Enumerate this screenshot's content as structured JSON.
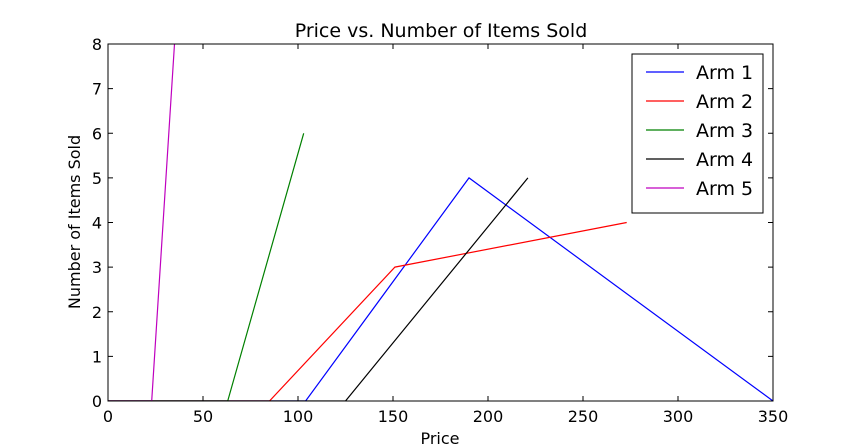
{
  "chart_data": {
    "type": "line",
    "title": "Price vs. Number of Items Sold",
    "xlabel": "Price",
    "ylabel": "Number of Items Sold",
    "xlim": [
      0,
      350
    ],
    "ylim": [
      0,
      8
    ],
    "xticks": [
      0,
      50,
      100,
      150,
      200,
      250,
      300,
      350
    ],
    "yticks": [
      0,
      1,
      2,
      3,
      4,
      5,
      6,
      7,
      8
    ],
    "grid": false,
    "legend_position": "top-right",
    "series": [
      {
        "name": "Arm 1",
        "color": "#0000ff",
        "points": [
          [
            0,
            0
          ],
          [
            104,
            0
          ],
          [
            190,
            5
          ],
          [
            350,
            0
          ]
        ]
      },
      {
        "name": "Arm 2",
        "color": "#ff0000",
        "points": [
          [
            0,
            0
          ],
          [
            85,
            0
          ],
          [
            151,
            3
          ],
          [
            273,
            4
          ]
        ]
      },
      {
        "name": "Arm 3",
        "color": "#008000",
        "points": [
          [
            0,
            0
          ],
          [
            63,
            0
          ],
          [
            103,
            6
          ]
        ]
      },
      {
        "name": "Arm 4",
        "color": "#000000",
        "points": [
          [
            0,
            0
          ],
          [
            125,
            0
          ],
          [
            221,
            5
          ]
        ]
      },
      {
        "name": "Arm 5",
        "color": "#bf00bf",
        "points": [
          [
            0,
            0
          ],
          [
            23,
            0
          ],
          [
            35,
            8
          ]
        ]
      }
    ]
  }
}
